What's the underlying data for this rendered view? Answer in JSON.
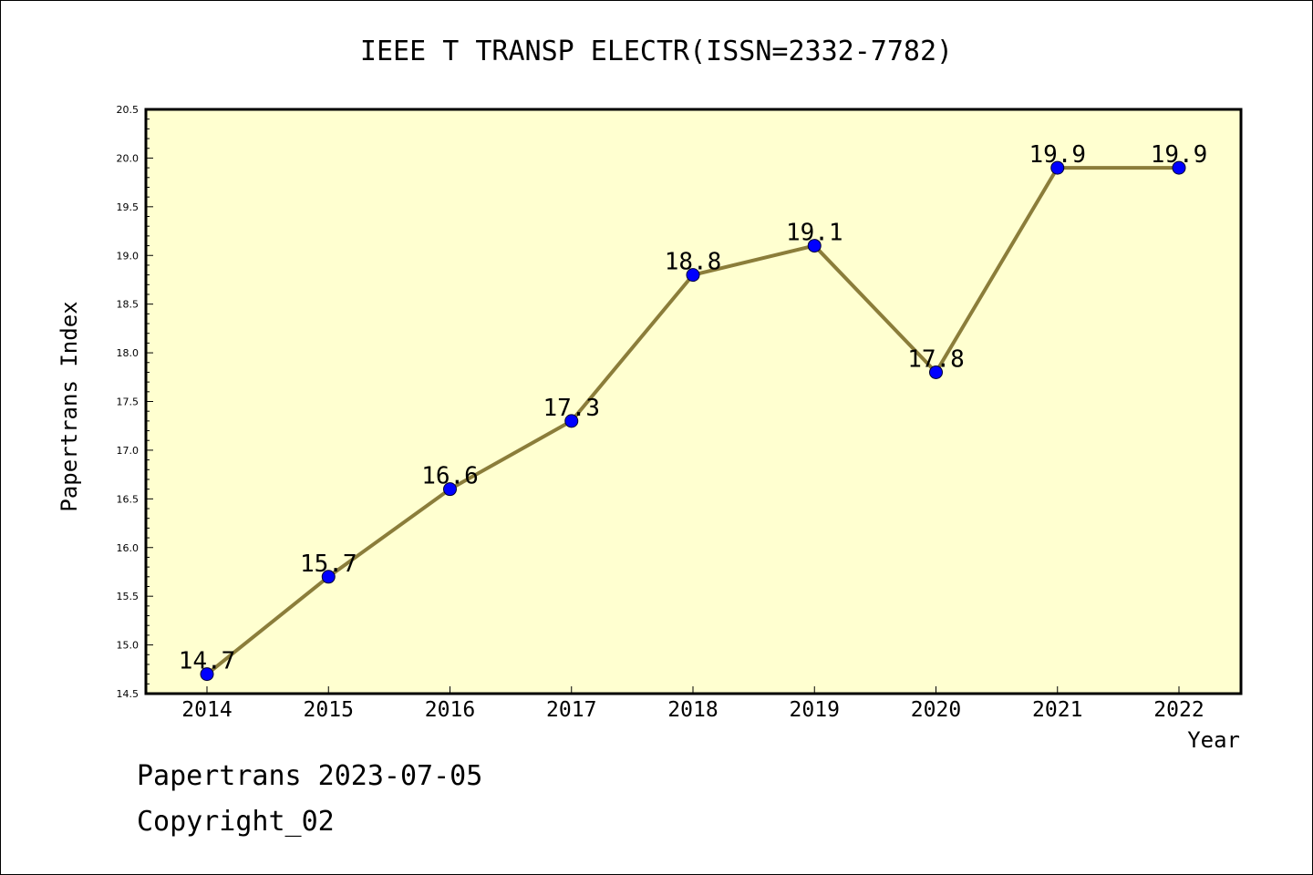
{
  "chart_data": {
    "type": "line",
    "title": "IEEE T TRANSP ELECTR(ISSN=2332-7782)",
    "xlabel": "Year",
    "ylabel": "Papertrans Index",
    "categories": [
      "2014",
      "2015",
      "2016",
      "2017",
      "2018",
      "2019",
      "2020",
      "2021",
      "2022"
    ],
    "series": [
      {
        "values": [
          14.7,
          15.7,
          16.6,
          17.3,
          18.8,
          19.1,
          17.8,
          19.9,
          19.9
        ]
      }
    ],
    "data_labels": [
      "14.7",
      "15.7",
      "16.6",
      "17.3",
      "18.8",
      "19.1",
      "17.8",
      "19.9",
      "19.9"
    ],
    "ylim": [
      14.5,
      20.5
    ],
    "yticks": [
      "14.5",
      "15.0",
      "15.5",
      "16.0",
      "16.5",
      "17.0",
      "17.5",
      "18.0",
      "18.5",
      "19.0",
      "19.5",
      "20.0",
      "20.5"
    ],
    "grid": false,
    "legend": "none",
    "colors": {
      "plot_background": "#ffffd0",
      "line": "#8b7d3a",
      "marker": "#0000ff",
      "frame": "#000000"
    }
  },
  "footer": {
    "date_line": "Papertrans 2023-07-05",
    "copyright": "Copyright_02"
  }
}
